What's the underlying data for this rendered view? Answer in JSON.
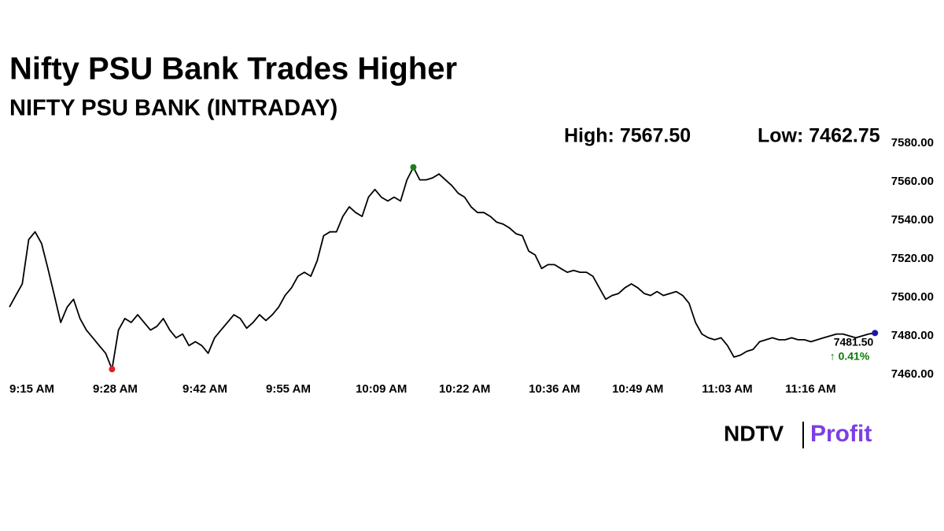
{
  "chart_data": {
    "type": "line",
    "title": "Nifty PSU Bank Trades Higher",
    "subtitle": "NIFTY PSU BANK (INTRADAY)",
    "high_label": "High: 7567.50",
    "low_label": "Low: 7462.75",
    "last_label": "7481.50",
    "change_label": "↑ 0.41%",
    "brand": "NDTV",
    "brand_sub": "Profit",
    "x": [
      "9:15 AM",
      "9:16 AM",
      "9:17 AM",
      "9:18 AM",
      "9:19 AM",
      "9:20 AM",
      "9:21 AM",
      "9:22 AM",
      "9:23 AM",
      "9:24 AM",
      "9:25 AM",
      "9:26 AM",
      "9:27 AM",
      "9:28 AM",
      "9:29 AM",
      "9:30 AM",
      "9:31 AM",
      "9:32 AM",
      "9:33 AM",
      "9:34 AM",
      "9:35 AM",
      "9:36 AM",
      "9:37 AM",
      "9:38 AM",
      "9:39 AM",
      "9:40 AM",
      "9:41 AM",
      "9:42 AM",
      "9:43 AM",
      "9:44 AM",
      "9:45 AM",
      "9:46 AM",
      "9:47 AM",
      "9:48 AM",
      "9:49 AM",
      "9:50 AM",
      "9:51 AM",
      "9:52 AM",
      "9:53 AM",
      "9:54 AM",
      "9:55 AM",
      "9:56 AM",
      "9:57 AM",
      "9:58 AM",
      "9:59 AM",
      "10:00 AM",
      "10:01 AM",
      "10:02 AM",
      "10:03 AM",
      "10:04 AM",
      "10:05 AM",
      "10:06 AM",
      "10:07 AM",
      "10:08 AM",
      "10:09 AM",
      "10:10 AM",
      "10:11 AM",
      "10:12 AM",
      "10:13 AM",
      "10:14 AM",
      "10:15 AM",
      "10:16 AM",
      "10:17 AM",
      "10:18 AM",
      "10:19 AM",
      "10:20 AM",
      "10:21 AM",
      "10:22 AM",
      "10:23 AM",
      "10:24 AM",
      "10:25 AM",
      "10:26 AM",
      "10:27 AM",
      "10:28 AM",
      "10:29 AM",
      "10:30 AM",
      "10:31 AM",
      "10:32 AM",
      "10:33 AM",
      "10:34 AM",
      "10:35 AM",
      "10:36 AM",
      "10:37 AM",
      "10:38 AM",
      "10:39 AM",
      "10:40 AM",
      "10:41 AM",
      "10:42 AM",
      "10:43 AM",
      "10:44 AM",
      "10:45 AM",
      "10:46 AM",
      "10:47 AM",
      "10:48 AM",
      "10:49 AM",
      "10:50 AM",
      "10:51 AM",
      "10:52 AM",
      "10:53 AM",
      "10:54 AM",
      "10:55 AM",
      "10:56 AM",
      "10:57 AM",
      "10:58 AM",
      "10:59 AM",
      "11:00 AM",
      "11:01 AM",
      "11:02 AM",
      "11:03 AM",
      "11:04 AM",
      "11:05 AM",
      "11:06 AM",
      "11:07 AM",
      "11:08 AM",
      "11:09 AM",
      "11:10 AM",
      "11:11 AM",
      "11:12 AM",
      "11:13 AM",
      "11:14 AM",
      "11:15 AM",
      "11:16 AM",
      "11:17 AM",
      "11:18 AM",
      "11:19 AM",
      "11:20 AM",
      "11:21 AM",
      "11:22 AM",
      "11:23 AM",
      "11:24 AM",
      "11:25 AM",
      "11:26 AM",
      "11:27 AM",
      "11:28 AM",
      "11:29 AM",
      "11:30 AM"
    ],
    "series": [
      {
        "name": "NIFTY PSU BANK",
        "color": "#000000",
        "values": [
          7495,
          7501,
          7507,
          7530,
          7534,
          7528,
          7515,
          7501,
          7487,
          7495,
          7499,
          7489,
          7483,
          7479,
          7475,
          7471,
          7462.75,
          7483,
          7489,
          7487,
          7491,
          7487,
          7483,
          7485,
          7489,
          7483,
          7479,
          7481,
          7475,
          7477,
          7475,
          7471,
          7479,
          7483,
          7487,
          7491,
          7489,
          7484,
          7487,
          7491,
          7488,
          7491,
          7495,
          7501,
          7505,
          7511,
          7513,
          7511,
          7519,
          7532,
          7534,
          7534,
          7542,
          7547,
          7544,
          7542,
          7552,
          7556,
          7552,
          7550,
          7552,
          7550,
          7561,
          7567.5,
          7561,
          7561,
          7562,
          7564,
          7561,
          7558,
          7554,
          7552,
          7547,
          7544,
          7544,
          7542,
          7539,
          7538,
          7536,
          7533,
          7532,
          7524,
          7522,
          7515,
          7517,
          7517,
          7515,
          7513,
          7514,
          7513,
          7513,
          7511,
          7505,
          7499,
          7501,
          7502,
          7505,
          7507,
          7505,
          7502,
          7501,
          7503,
          7501,
          7502,
          7503,
          7501,
          7497,
          7487,
          7481,
          7479,
          7478,
          7479,
          7475,
          7469,
          7470,
          7472,
          7473,
          7477,
          7478,
          7479,
          7478,
          7478,
          7479,
          7478,
          7478,
          7477,
          7478,
          7479,
          7480,
          7481,
          7481,
          7480,
          7479,
          7480,
          7481,
          7481.5
        ]
      }
    ],
    "high_color": "#1a7f1a",
    "low_color": "#e02020",
    "last_color": "#1a1aa0",
    "change_color": "#0a7a0a",
    "xticks": [
      "9:15 AM",
      "9:28 AM",
      "9:42 AM",
      "9:55 AM",
      "10:09 AM",
      "10:22 AM",
      "10:36 AM",
      "10:49 AM",
      "11:03 AM",
      "11:16 AM"
    ],
    "ylim": [
      7460,
      7580
    ],
    "yticks": [
      {
        "value": 7460,
        "label": "7460.00"
      },
      {
        "value": 7480,
        "label": "7480.00"
      },
      {
        "value": 7500,
        "label": "7500.00"
      },
      {
        "value": 7520,
        "label": "7520.00"
      },
      {
        "value": 7540,
        "label": "7540.00"
      },
      {
        "value": 7560,
        "label": "7560.00"
      },
      {
        "value": 7580,
        "label": "7580.00"
      }
    ]
  }
}
